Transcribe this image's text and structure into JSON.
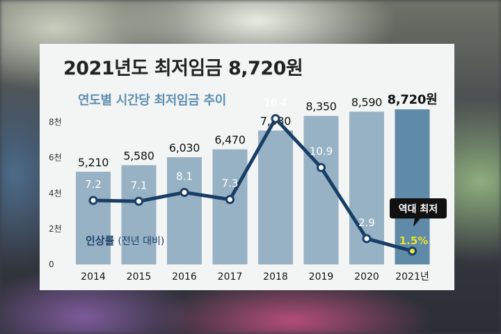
{
  "title": "2021년도 최저임금 8,720원",
  "subtitle": "연도별 시간당 최저임금 추이",
  "chart_data": {
    "type": "bar",
    "categories": [
      "2014",
      "2015",
      "2016",
      "2017",
      "2018",
      "2019",
      "2020",
      "2021년"
    ],
    "values": [
      5210,
      5580,
      6030,
      6470,
      7530,
      8350,
      8590,
      8720
    ],
    "value_labels": [
      "5,210",
      "5,580",
      "6,030",
      "6,470",
      "7,530",
      "8,350",
      "8,590",
      "8,720원"
    ],
    "ylim": [
      0,
      9000
    ],
    "yticks": [
      0,
      2000,
      4000,
      6000,
      8000
    ],
    "ytick_labels": [
      "0",
      "2천",
      "4천",
      "6천",
      "8천"
    ],
    "grid": false,
    "bar_color": "#97b2c4",
    "highlight_bar_color": "#5f8ba8",
    "line_series": {
      "name": "인상률",
      "name_note": "(전년 대비)",
      "values": [
        7.2,
        7.1,
        8.1,
        7.3,
        16.4,
        10.9,
        2.9,
        1.5
      ],
      "labels": [
        "7.2",
        "7.1",
        "8.1",
        "7.3",
        "16.4",
        "10.9",
        "2.9",
        "1.5%"
      ],
      "ylim": [
        0,
        18
      ],
      "line_color": "#183e66",
      "highlight_point_color": "#eeea3e"
    },
    "annotation": "역대 최저"
  }
}
